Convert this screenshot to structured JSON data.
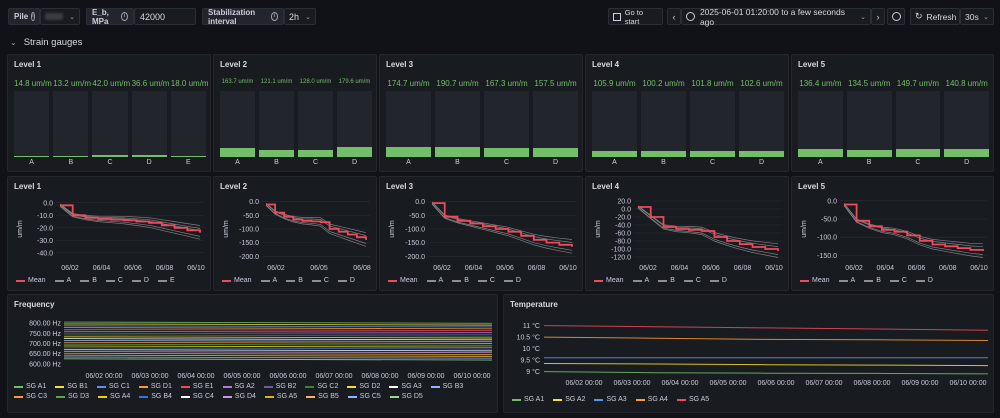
{
  "toolbar": {
    "pile_label": "Pile",
    "pile_value": "",
    "eb_label": "E_b, MPa",
    "eb_value": "42000",
    "stab_label": "Stabilization interval",
    "stab_value": "2h",
    "go_to_start": "Go to start",
    "time_range": "2025-06-01 01:20:00 to a few seconds ago",
    "refresh": "Refresh",
    "refresh_interval": "30s"
  },
  "section": {
    "title": "Strain gauges"
  },
  "colors": {
    "green": "#73bf69",
    "red": "#f2495c",
    "grey": "#8e8e8e"
  },
  "levels": [
    {
      "title": "Level 1",
      "bars": [
        {
          "label": "A",
          "display": "14.8 um/m",
          "value": 14.8
        },
        {
          "label": "B",
          "display": "13.2 um/m",
          "value": 13.2
        },
        {
          "label": "C",
          "display": "42.0 um/m",
          "value": 42.0
        },
        {
          "label": "D",
          "display": "36.6 um/m",
          "value": 36.6
        },
        {
          "label": "E",
          "display": "18.0 um/m",
          "value": 18.0
        }
      ],
      "max": 1200
    },
    {
      "title": "Level 2",
      "bars": [
        {
          "label": "A",
          "display": "163.7 um/m",
          "value": 163.7
        },
        {
          "label": "B",
          "display": "121.1 um/m",
          "value": 121.1
        },
        {
          "label": "C",
          "display": "128.0 um/m",
          "value": 128.0
        },
        {
          "label": "D",
          "display": "179.6 um/m",
          "value": 179.6
        }
      ],
      "max": 1200
    },
    {
      "title": "Level 3",
      "bars": [
        {
          "label": "A",
          "display": "174.7 um/m",
          "value": 174.7
        },
        {
          "label": "B",
          "display": "190.7 um/m",
          "value": 190.7
        },
        {
          "label": "C",
          "display": "167.3 um/m",
          "value": 167.3
        },
        {
          "label": "D",
          "display": "157.5 um/m",
          "value": 157.5
        }
      ],
      "max": 1200
    },
    {
      "title": "Level 4",
      "bars": [
        {
          "label": "A",
          "display": "105.9 um/m",
          "value": 105.9
        },
        {
          "label": "B",
          "display": "100.2 um/m",
          "value": 100.2
        },
        {
          "label": "C",
          "display": "101.8 um/m",
          "value": 101.8
        },
        {
          "label": "D",
          "display": "102.6 um/m",
          "value": 102.6
        }
      ],
      "max": 1200
    },
    {
      "title": "Level 5",
      "bars": [
        {
          "label": "A",
          "display": "136.4 um/m",
          "value": 136.4
        },
        {
          "label": "B",
          "display": "134.5 um/m",
          "value": 134.5
        },
        {
          "label": "C",
          "display": "149.7 um/m",
          "value": 149.7
        },
        {
          "label": "D",
          "display": "140.8 um/m",
          "value": 140.8
        }
      ],
      "max": 1200
    }
  ],
  "chart_data": [
    {
      "type": "line",
      "title": "Level 1",
      "ylabel": "um/m",
      "y_ticks": [
        "0.0",
        "-10.0",
        "-20.0",
        "-30.0",
        "-40.0"
      ],
      "ylim": [
        -45,
        3
      ],
      "x_ticks": [
        "06/02",
        "06/04",
        "06/06",
        "06/08",
        "06/10"
      ],
      "legend": [
        "Mean",
        "A",
        "B",
        "C",
        "D",
        "E"
      ],
      "series": [
        {
          "name": "Mean",
          "values": [
            -2,
            -10,
            -12,
            -13,
            -13.5,
            -14,
            -15,
            -16,
            -18,
            -20,
            -22,
            -24
          ]
        }
      ]
    },
    {
      "type": "line",
      "title": "Level 2",
      "ylabel": "um/m",
      "y_ticks": [
        "0.0",
        "-50.0",
        "-100.0",
        "-150.0",
        "-200.0"
      ],
      "ylim": [
        -210,
        10
      ],
      "x_ticks": [
        "06/02",
        "06/05",
        "06/08"
      ],
      "legend": [
        "Mean",
        "A",
        "B",
        "C",
        "D"
      ],
      "series": [
        {
          "name": "Mean",
          "values": [
            -10,
            -40,
            -55,
            -65,
            -70,
            -72,
            -75,
            -100,
            -110,
            -120,
            -130,
            -140
          ]
        }
      ]
    },
    {
      "type": "line",
      "title": "Level 3",
      "ylabel": "um/m",
      "y_ticks": [
        "0.0",
        "-50.0",
        "-100.0",
        "-150.0",
        "-200.0"
      ],
      "ylim": [
        -210,
        10
      ],
      "x_ticks": [
        "06/02",
        "06/04",
        "06/06",
        "06/08",
        "06/10"
      ],
      "legend": [
        "Mean",
        "A",
        "B",
        "C",
        "D"
      ],
      "series": [
        {
          "name": "Mean",
          "values": [
            -5,
            -55,
            -70,
            -80,
            -90,
            -100,
            -110,
            -125,
            -140,
            -150,
            -158,
            -165
          ]
        }
      ]
    },
    {
      "type": "line",
      "title": "Level 4",
      "ylabel": "um/m",
      "y_ticks": [
        "20.0",
        "0.0",
        "-20.0",
        "-40.0",
        "-60.0",
        "-80.0",
        "-100.0",
        "-120.0"
      ],
      "ylim": [
        -125,
        25
      ],
      "x_ticks": [
        "06/02",
        "06/04",
        "06/06",
        "06/08",
        "06/10"
      ],
      "legend": [
        "Mean",
        "A",
        "B",
        "C",
        "D"
      ],
      "series": [
        {
          "name": "Mean",
          "values": [
            5,
            -20,
            -45,
            -50,
            -52,
            -55,
            -70,
            -80,
            -88,
            -95,
            -100,
            -105
          ]
        }
      ]
    },
    {
      "type": "line",
      "title": "Level 5",
      "ylabel": "um/m",
      "y_ticks": [
        "0.0",
        "-50.0",
        "-100.0",
        "-150.0"
      ],
      "ylim": [
        -160,
        5
      ],
      "x_ticks": [
        "06/02",
        "06/04",
        "06/06",
        "06/08",
        "06/10"
      ],
      "legend": [
        "Mean",
        "A",
        "B",
        "C",
        "D"
      ],
      "series": [
        {
          "name": "Mean",
          "values": [
            -10,
            -55,
            -70,
            -80,
            -85,
            -95,
            -110,
            -120,
            -125,
            -130,
            -135,
            -138
          ]
        }
      ]
    },
    {
      "type": "line",
      "title": "Frequency",
      "y_ticks": [
        "800.00 Hz",
        "750.00 Hz",
        "700.00 Hz",
        "650.00 Hz",
        "600.00 Hz"
      ],
      "ylim": [
        585,
        820
      ],
      "x_ticks": [
        "06/02 00:00",
        "06/03 00:00",
        "06/04 00:00",
        "06/05 00:00",
        "06/06 00:00",
        "06/07 00:00",
        "06/08 00:00",
        "06/09 00:00",
        "06/10 00:00"
      ],
      "legend": [
        {
          "name": "SG A1",
          "color": "#73bf69"
        },
        {
          "name": "SG B1",
          "color": "#fade2a"
        },
        {
          "name": "SG C1",
          "color": "#5794f2"
        },
        {
          "name": "SG D1",
          "color": "#ff9830"
        },
        {
          "name": "SG E1",
          "color": "#f2495c"
        },
        {
          "name": "SG A2",
          "color": "#b877d9"
        },
        {
          "name": "SG B2",
          "color": "#705da0"
        },
        {
          "name": "SG C2",
          "color": "#37872d"
        },
        {
          "name": "SG D2",
          "color": "#fade2a"
        },
        {
          "name": "SG A3",
          "color": "#ffffff"
        },
        {
          "name": "SG B3",
          "color": "#8ab8ff"
        },
        {
          "name": "SG C3",
          "color": "#ff9830"
        },
        {
          "name": "SG D3",
          "color": "#56a64b"
        },
        {
          "name": "SG A4",
          "color": "#f2cc0c"
        },
        {
          "name": "SG B4",
          "color": "#3274d9"
        },
        {
          "name": "SG C4",
          "color": "#ffffff"
        },
        {
          "name": "SG D4",
          "color": "#ca95e5"
        },
        {
          "name": "SG A5",
          "color": "#e0b400"
        },
        {
          "name": "SG B5",
          "color": "#ffb357"
        },
        {
          "name": "SG C5",
          "color": "#8ab8ff"
        },
        {
          "name": "SG D5",
          "color": "#96d98d"
        }
      ]
    },
    {
      "type": "line",
      "title": "Temperature",
      "y_ticks": [
        "11 °C",
        "10.5 °C",
        "10 °C",
        "9.5 °C",
        "9 °C"
      ],
      "ylim": [
        8.85,
        11.2
      ],
      "x_ticks": [
        "06/02 00:00",
        "06/03 00:00",
        "06/04 00:00",
        "06/05 00:00",
        "06/06 00:00",
        "06/07 00:00",
        "06/08 00:00",
        "06/09 00:00",
        "06/10 00:00"
      ],
      "legend": [
        {
          "name": "SG A1",
          "color": "#73bf69"
        },
        {
          "name": "SG A2",
          "color": "#fade2a"
        },
        {
          "name": "SG A3",
          "color": "#5794f2"
        },
        {
          "name": "SG A4",
          "color": "#ff9830"
        },
        {
          "name": "SG A5",
          "color": "#f2495c"
        }
      ],
      "series": [
        {
          "name": "SG A1",
          "values": [
            9.0,
            8.95,
            8.93,
            8.92,
            8.9
          ]
        },
        {
          "name": "SG A2",
          "values": [
            9.35,
            9.33,
            9.3,
            9.28,
            9.26
          ]
        },
        {
          "name": "SG A3",
          "values": [
            9.6,
            9.6,
            9.6,
            9.6,
            9.6
          ]
        },
        {
          "name": "SG A4",
          "values": [
            10.5,
            10.45,
            10.4,
            10.38,
            10.35
          ]
        },
        {
          "name": "SG A5",
          "values": [
            11.0,
            10.95,
            10.9,
            10.85,
            10.8
          ]
        }
      ]
    }
  ]
}
